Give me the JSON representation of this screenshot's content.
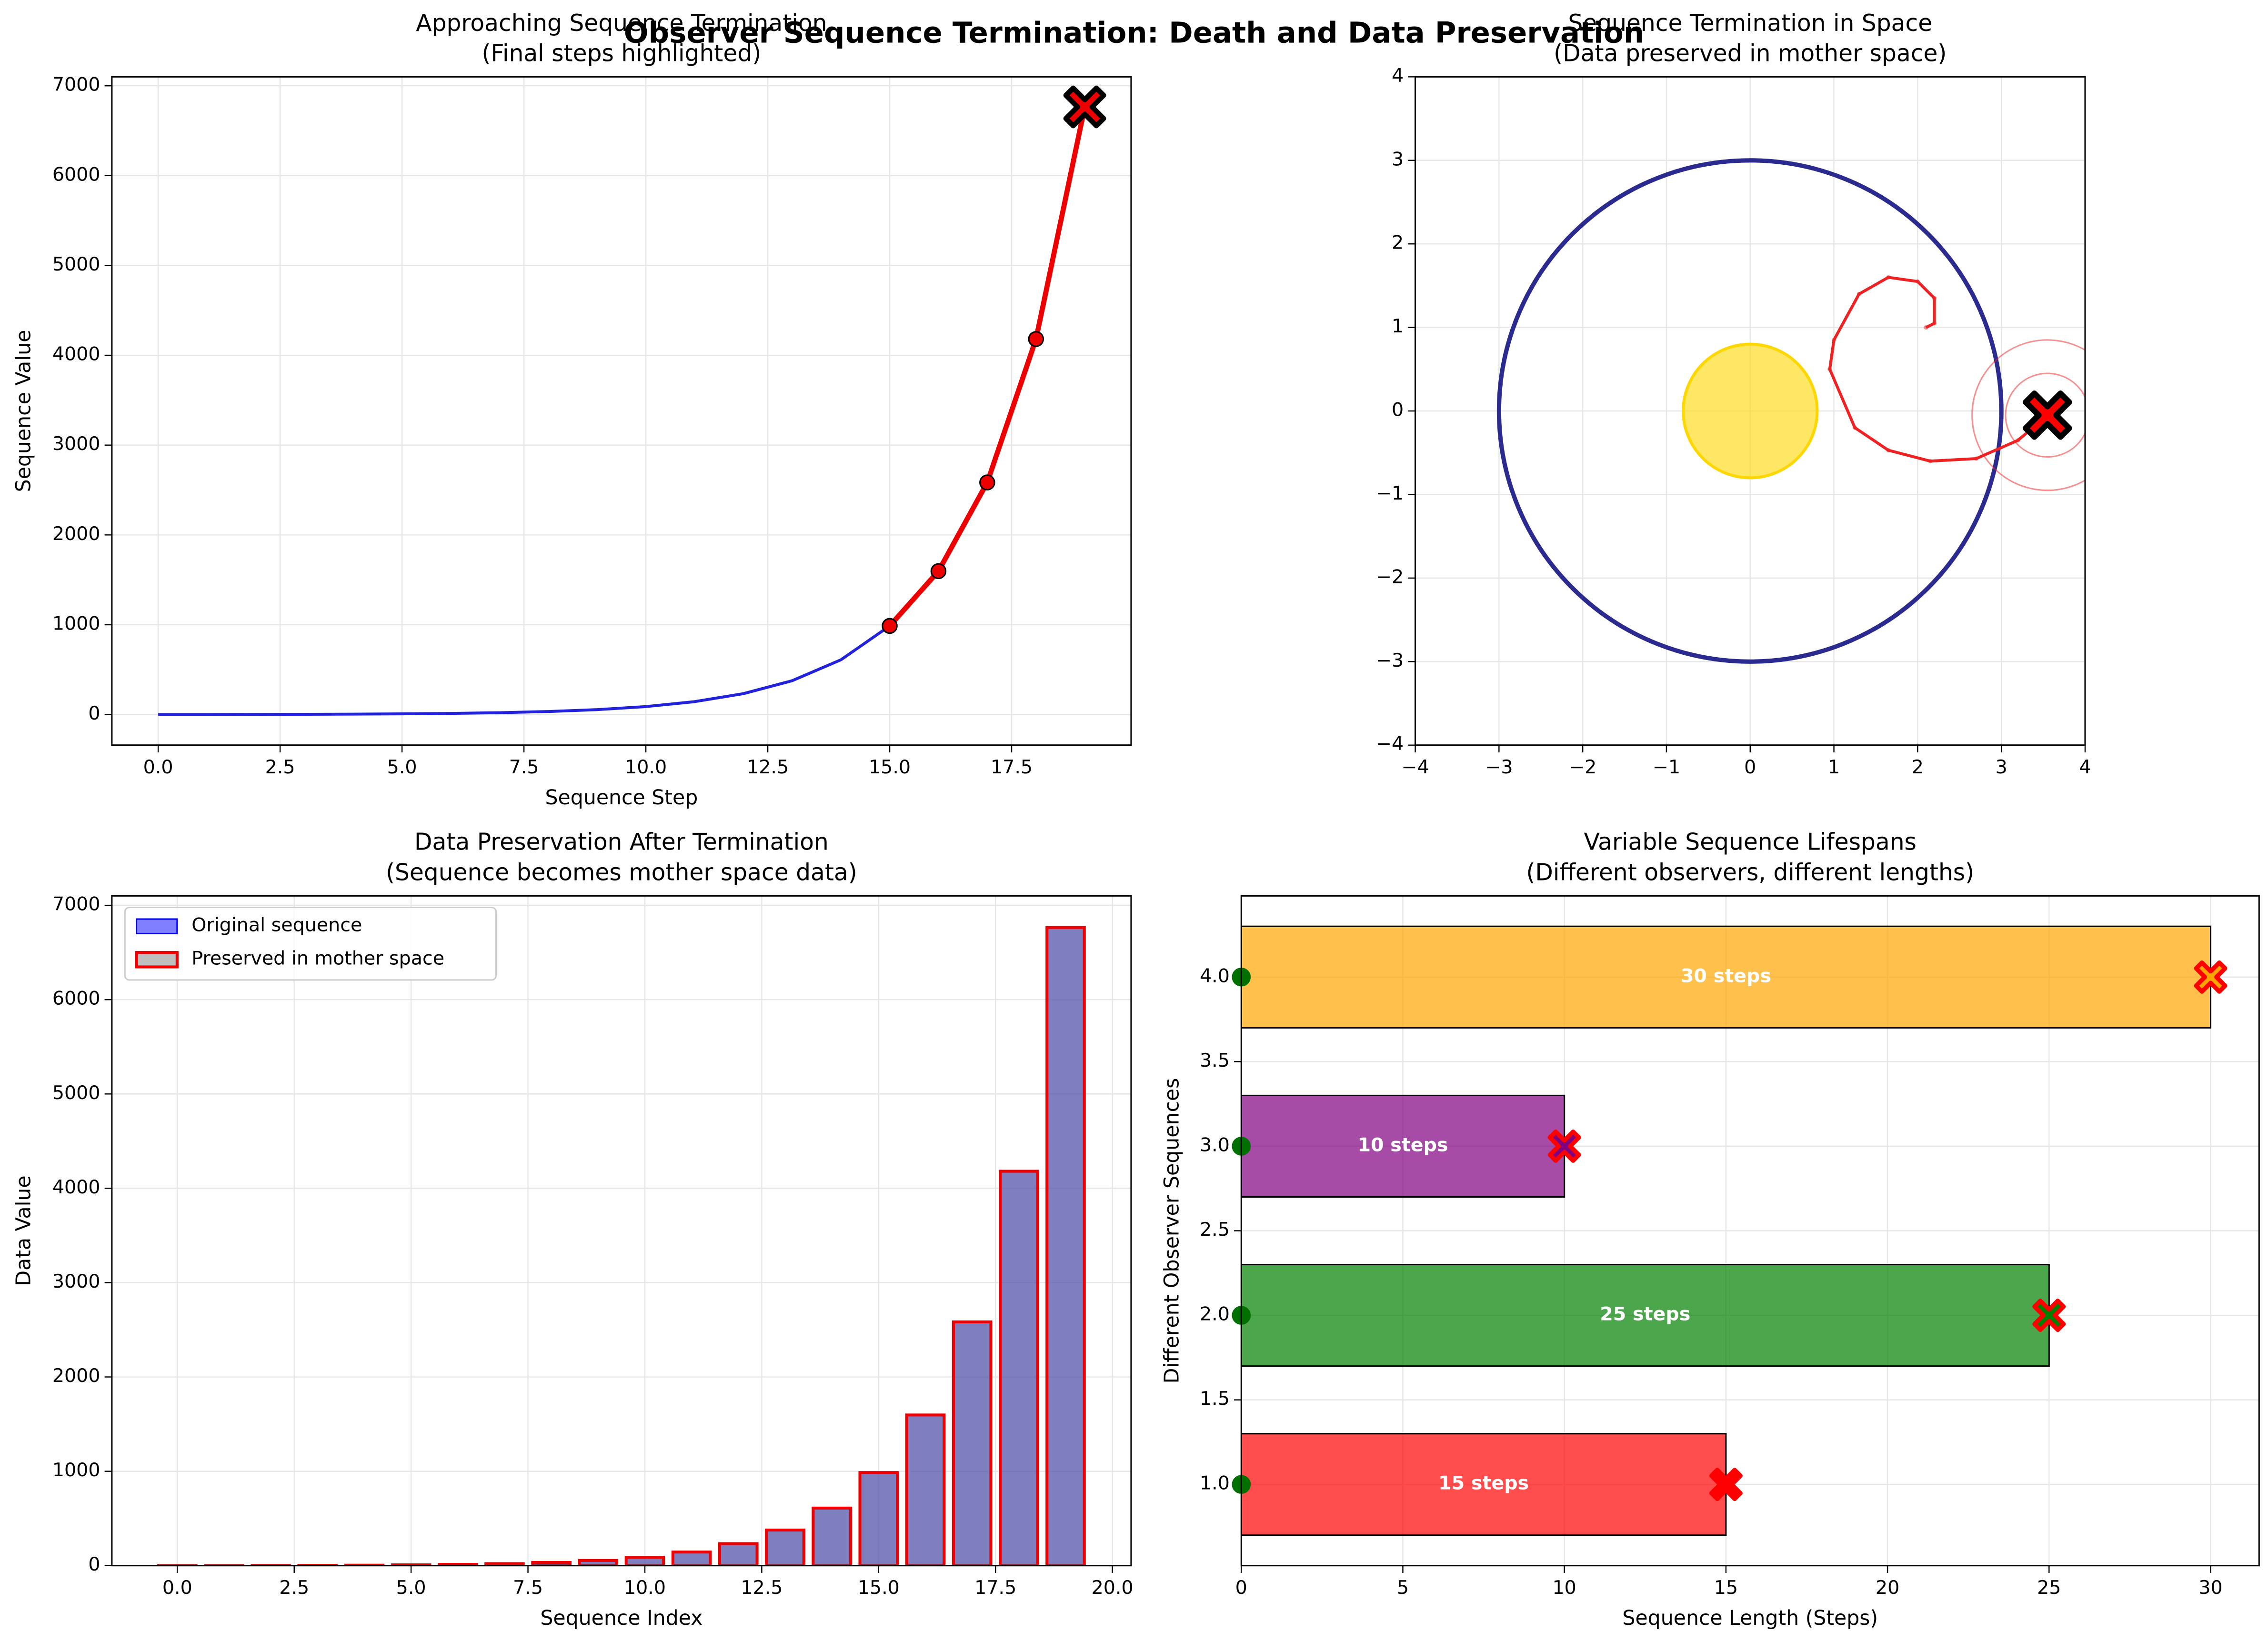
{
  "suptitle": "Observer Sequence Termination: Death and Data Preservation",
  "chart_data": [
    {
      "type": "line",
      "title": "Approaching Sequence Termination",
      "subtitle": "(Final steps highlighted)",
      "xlabel": "Sequence Step",
      "ylabel": "Sequence Value",
      "x": [
        0,
        1,
        2,
        3,
        4,
        5,
        6,
        7,
        8,
        9,
        10,
        11,
        12,
        13,
        14,
        15,
        16,
        17,
        18,
        19
      ],
      "values": [
        1,
        1,
        2,
        3,
        5,
        8,
        13,
        21,
        34,
        55,
        89,
        144,
        233,
        377,
        610,
        987,
        1597,
        2584,
        4181,
        6765
      ],
      "color": "#2222dd",
      "highlight_color": "#ee0000",
      "highlight_from": 15,
      "xlim": [
        -0.95,
        19.95
      ],
      "ylim": [
        -340,
        7100
      ],
      "xticks": [
        {
          "value": 0,
          "label": "0.0"
        },
        {
          "value": 2.5,
          "label": "2.5"
        },
        {
          "value": 5,
          "label": "5.0"
        },
        {
          "value": 7.5,
          "label": "7.5"
        },
        {
          "value": 10,
          "label": "10.0"
        },
        {
          "value": 12.5,
          "label": "12.5"
        },
        {
          "value": 15,
          "label": "15.0"
        },
        {
          "value": 17.5,
          "label": "17.5"
        }
      ],
      "yticks": [
        0,
        1000,
        2000,
        3000,
        4000,
        5000,
        6000,
        7000
      ],
      "grid": true
    },
    {
      "type": "orbit",
      "title": "Sequence Termination in Space",
      "subtitle": "(Data preserved in mother space)",
      "x": [
        2.1,
        2.2,
        2.2,
        2.0,
        1.65,
        1.3,
        1.0,
        0.95,
        1.25,
        1.65,
        2.15,
        2.7,
        3.2,
        3.55
      ],
      "y": [
        1.0,
        1.05,
        1.35,
        1.55,
        1.6,
        1.4,
        0.85,
        0.5,
        -0.2,
        -0.47,
        -0.6,
        -0.57,
        -0.35,
        -0.05
      ],
      "color": "#ee2222",
      "orbit": {
        "radius": 3,
        "color": "#2b2b8f"
      },
      "sun": {
        "radius": 0.8,
        "color": "#ffd700"
      },
      "rings": [
        0.5,
        0.9
      ],
      "xlim": [
        -4,
        4
      ],
      "ylim": [
        -4,
        4
      ],
      "xticks": [
        {
          "value": -4,
          "label": "−4"
        },
        {
          "value": -3,
          "label": "−3"
        },
        {
          "value": -2,
          "label": "−2"
        },
        {
          "value": -1,
          "label": "−1"
        },
        0,
        1,
        2,
        3,
        4
      ],
      "yticks": [
        {
          "value": -4,
          "label": "−4"
        },
        {
          "value": -3,
          "label": "−3"
        },
        {
          "value": -2,
          "label": "−2"
        },
        {
          "value": -1,
          "label": "−1"
        },
        0,
        1,
        2,
        3,
        4
      ],
      "grid": true
    },
    {
      "type": "bar",
      "title": "Data Preservation After Termination",
      "subtitle": "(Sequence becomes mother space data)",
      "xlabel": "Sequence Index",
      "ylabel": "Data Value",
      "x": [
        0,
        1,
        2,
        3,
        4,
        5,
        6,
        7,
        8,
        9,
        10,
        11,
        12,
        13,
        14,
        15,
        16,
        17,
        18,
        19
      ],
      "series": [
        {
          "name": "Original sequence",
          "color": "#0000ff",
          "values": [
            1,
            1,
            2,
            3,
            5,
            8,
            13,
            21,
            34,
            55,
            89,
            144,
            233,
            377,
            610,
            987,
            1597,
            2584,
            4181,
            6765
          ]
        },
        {
          "name": "Preserved in mother space",
          "color": "#808080",
          "edgecolor": "#ee0000",
          "values": [
            1,
            1,
            2,
            3,
            5,
            8,
            13,
            21,
            34,
            55,
            89,
            144,
            233,
            377,
            610,
            987,
            1597,
            2584,
            4181,
            6765
          ]
        }
      ],
      "legend": "upper left",
      "xlim": [
        -1.4,
        20.4
      ],
      "ylim": [
        0,
        7100
      ],
      "xticks": [
        {
          "value": 0,
          "label": "0.0"
        },
        {
          "value": 2.5,
          "label": "2.5"
        },
        {
          "value": 5,
          "label": "5.0"
        },
        {
          "value": 7.5,
          "label": "7.5"
        },
        {
          "value": 10,
          "label": "10.0"
        },
        {
          "value": 12.5,
          "label": "12.5"
        },
        {
          "value": 15,
          "label": "15.0"
        },
        {
          "value": 17.5,
          "label": "17.5"
        },
        {
          "value": 20,
          "label": "20.0"
        }
      ],
      "yticks": [
        0,
        1000,
        2000,
        3000,
        4000,
        5000,
        6000,
        7000
      ],
      "grid": true
    },
    {
      "type": "barh",
      "title": "Variable Sequence Lifespans",
      "subtitle": "(Different observers, different lengths)",
      "xlabel": "Sequence Length (Steps)",
      "ylabel": "Different Observer Sequences",
      "y": [
        1,
        2,
        3,
        4
      ],
      "values": [
        15,
        25,
        10,
        30
      ],
      "value_labels": [
        "15 steps",
        "25 steps",
        "10 steps",
        "30 steps"
      ],
      "colors": [
        "#ff0000",
        "#008000",
        "#800080",
        "#ffa500"
      ],
      "start_color": "#007000",
      "end_edge_color": "#ff0000",
      "xlim": [
        0,
        31.5
      ],
      "ylim": [
        0.52,
        4.48
      ],
      "xticks": [
        0,
        5,
        10,
        15,
        20,
        25,
        30
      ],
      "yticks": [
        {
          "value": 1,
          "label": "1.0"
        },
        {
          "value": 1.5,
          "label": "1.5"
        },
        {
          "value": 2,
          "label": "2.0"
        },
        {
          "value": 2.5,
          "label": "2.5"
        },
        {
          "value": 3,
          "label": "3.0"
        },
        {
          "value": 3.5,
          "label": "3.5"
        },
        {
          "value": 4,
          "label": "4.0"
        }
      ],
      "grid": true
    }
  ]
}
